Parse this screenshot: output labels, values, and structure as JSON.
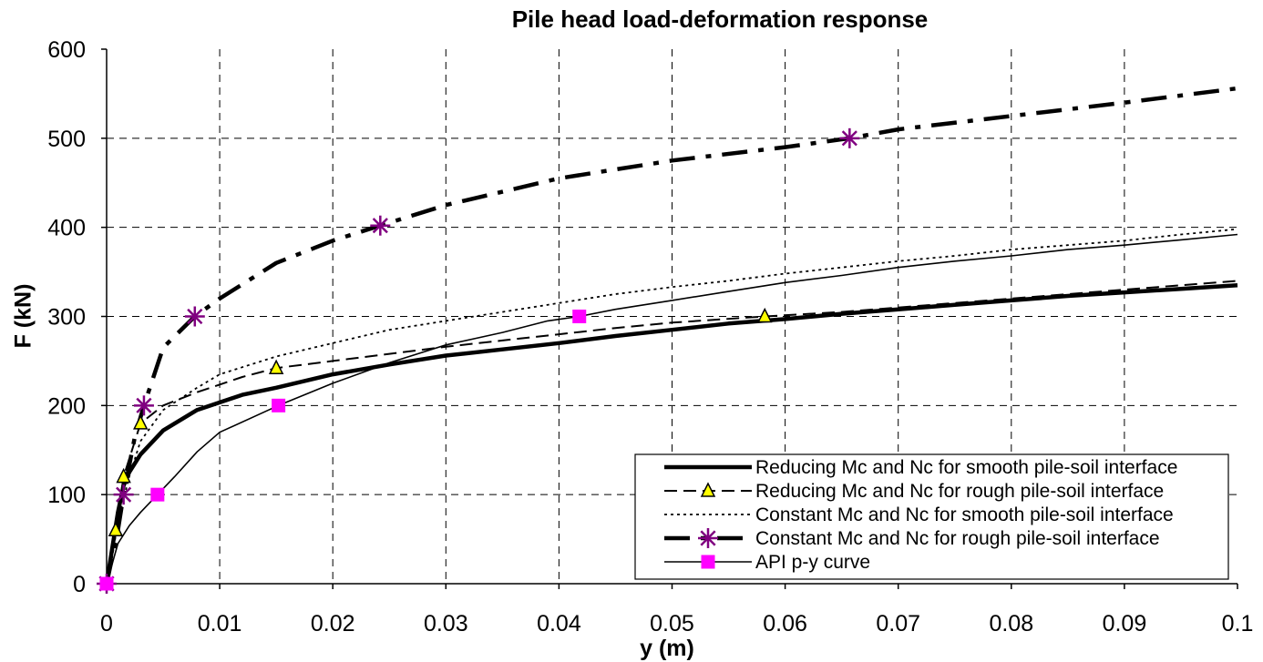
{
  "chart_data": {
    "type": "line",
    "title": "Pile head load-deformation response",
    "xlabel": "y (m)",
    "ylabel": "F (kN)",
    "xlim": [
      0,
      0.1
    ],
    "ylim": [
      0,
      600
    ],
    "x_ticks": [
      "0",
      "0.01",
      "0.02",
      "0.03",
      "0.04",
      "0.05",
      "0.06",
      "0.07",
      "0.08",
      "0.09",
      "0.1"
    ],
    "y_ticks": [
      "0",
      "100",
      "200",
      "300",
      "400",
      "500",
      "600"
    ],
    "grid": true,
    "legend_position": "bottom-right",
    "series": [
      {
        "name": "Reducing Mc and Nc for smooth pile-soil interface",
        "line_style": "solid-thick",
        "marker": "none",
        "x": [
          0,
          0.0005,
          0.001,
          0.0015,
          0.002,
          0.003,
          0.005,
          0.008,
          0.012,
          0.015,
          0.02,
          0.025,
          0.03,
          0.035,
          0.04,
          0.045,
          0.05,
          0.055,
          0.06,
          0.065,
          0.07,
          0.075,
          0.08,
          0.085,
          0.09,
          0.095,
          0.1
        ],
        "y": [
          0,
          40,
          80,
          110,
          125,
          145,
          172,
          195,
          212,
          220,
          235,
          246,
          256,
          263,
          270,
          278,
          285,
          292,
          297,
          303,
          308,
          313,
          318,
          323,
          327,
          331,
          335
        ],
        "marker_points": []
      },
      {
        "name": "Reducing Mc and Nc for rough pile-soil interface",
        "line_style": "dashed",
        "marker": "triangle",
        "x": [
          0,
          0.0008,
          0.0015,
          0.003,
          0.005,
          0.008,
          0.012,
          0.015,
          0.02,
          0.025,
          0.03,
          0.035,
          0.04,
          0.045,
          0.05,
          0.0582,
          0.065,
          0.07,
          0.075,
          0.08,
          0.085,
          0.09,
          0.095,
          0.1
        ],
        "y": [
          0,
          60,
          120,
          180,
          200,
          215,
          232,
          242,
          250,
          258,
          266,
          273,
          280,
          287,
          293,
          300,
          305,
          310,
          315,
          320,
          325,
          330,
          335,
          340
        ],
        "marker_points": [
          [
            0,
            0
          ],
          [
            0.0008,
            60
          ],
          [
            0.0015,
            120
          ],
          [
            0.003,
            180
          ],
          [
            0.015,
            242
          ],
          [
            0.0582,
            300
          ]
        ]
      },
      {
        "name": "Constant Mc and Nc for smooth pile-soil interface",
        "line_style": "dotted",
        "marker": "none",
        "x": [
          0,
          0.0005,
          0.001,
          0.002,
          0.003,
          0.005,
          0.008,
          0.01,
          0.015,
          0.02,
          0.025,
          0.03,
          0.035,
          0.04,
          0.045,
          0.05,
          0.055,
          0.06,
          0.065,
          0.07,
          0.075,
          0.08,
          0.085,
          0.09,
          0.095,
          0.1
        ],
        "y": [
          0,
          30,
          70,
          120,
          160,
          195,
          220,
          235,
          255,
          270,
          285,
          295,
          305,
          315,
          325,
          333,
          340,
          348,
          355,
          362,
          368,
          375,
          380,
          385,
          392,
          398
        ],
        "marker_points": []
      },
      {
        "name": "Constant Mc and Nc for rough pile-soil interface",
        "line_style": "dash-dot-thick",
        "marker": "asterisk",
        "x": [
          0,
          0.001,
          0.0015,
          0.0025,
          0.0033,
          0.005,
          0.0078,
          0.01,
          0.015,
          0.02,
          0.0242,
          0.03,
          0.04,
          0.05,
          0.06,
          0.0657,
          0.07,
          0.08,
          0.09,
          0.1
        ],
        "y": [
          0,
          60,
          100,
          165,
          200,
          265,
          300,
          320,
          360,
          385,
          402,
          425,
          455,
          475,
          490,
          500,
          510,
          525,
          540,
          556
        ],
        "marker_points": [
          [
            0,
            0
          ],
          [
            0.0015,
            100
          ],
          [
            0.0033,
            200
          ],
          [
            0.0078,
            300
          ],
          [
            0.0242,
            402
          ],
          [
            0.0657,
            500
          ]
        ]
      },
      {
        "name": "API p-y curve",
        "line_style": "solid-thin",
        "marker": "square",
        "x": [
          0,
          0.001,
          0.002,
          0.003,
          0.0045,
          0.006,
          0.008,
          0.01,
          0.0152,
          0.02,
          0.025,
          0.03,
          0.035,
          0.039,
          0.0418,
          0.045,
          0.05,
          0.055,
          0.06,
          0.065,
          0.07,
          0.075,
          0.08,
          0.085,
          0.09,
          0.095,
          0.1
        ],
        "y": [
          0,
          45,
          65,
          80,
          100,
          120,
          148,
          170,
          200,
          225,
          248,
          268,
          282,
          295,
          300,
          308,
          318,
          328,
          338,
          346,
          355,
          362,
          368,
          375,
          380,
          386,
          392
        ],
        "marker_points": [
          [
            0,
            0
          ],
          [
            0.0045,
            100
          ],
          [
            0.0152,
            200
          ],
          [
            0.0418,
            300
          ]
        ]
      }
    ]
  },
  "colors": {
    "line": "#000000",
    "grid": "#000000",
    "triangle_fill": "#ffff00",
    "asterisk": "#800080",
    "square": "#ff00ff"
  }
}
